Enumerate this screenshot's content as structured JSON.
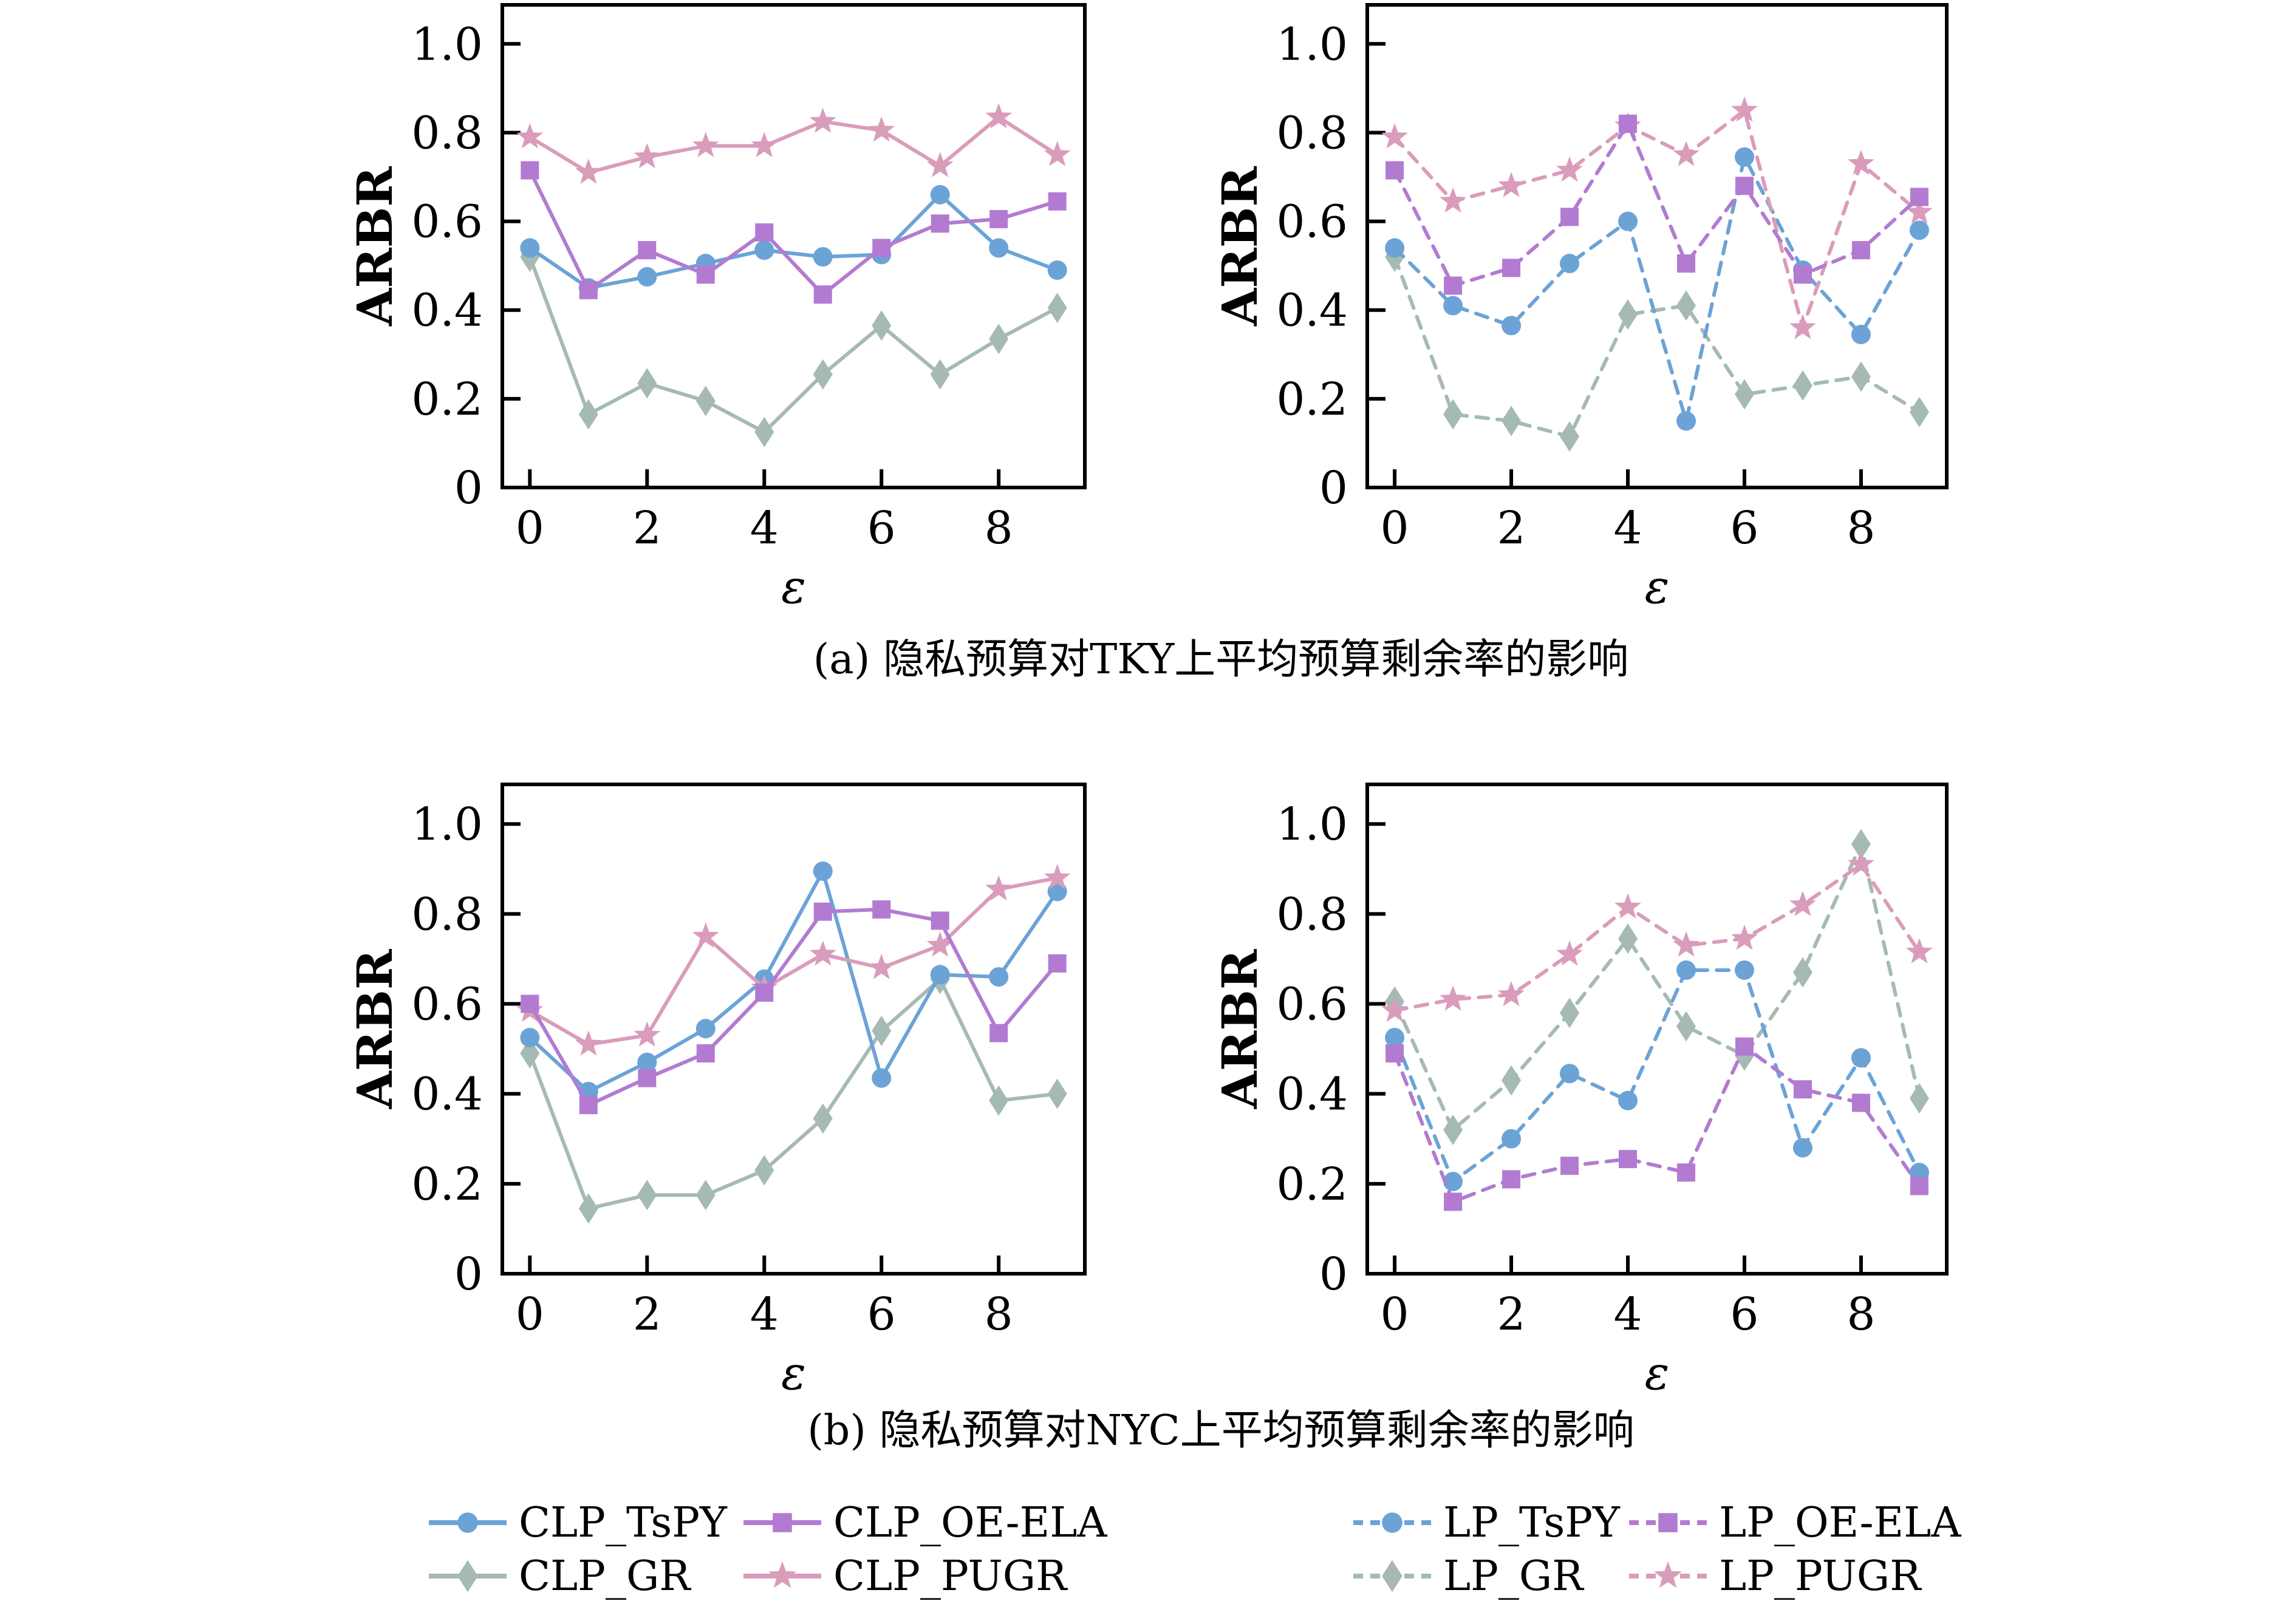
{
  "figure": {
    "background": "#ffffff",
    "captions": {
      "a": "(a) 隐私预算对TKY上平均预算剩余率的影响",
      "b": "(b) 隐私预算对NYC上平均预算剩余率的影响"
    }
  },
  "colors": {
    "TsPY": "#6ba3d6",
    "OE_ELA": "#b27bd1",
    "GR": "#a5bab2",
    "PUGR": "#da9cbb",
    "axis": "#000000"
  },
  "chart_data": [
    {
      "id": "tky-clp",
      "type": "line",
      "xlabel": "ε",
      "ylabel": "ARBR",
      "x": [
        0,
        1,
        2,
        3,
        4,
        5,
        6,
        7,
        8,
        9
      ],
      "xticks": [
        0,
        2,
        4,
        6,
        8
      ],
      "yticks": [
        0,
        0.2,
        0.4,
        0.6,
        0.8,
        1.0
      ],
      "ytick_labels": [
        "0",
        "0.2",
        "0.4",
        "0.6",
        "0.8",
        "1.0"
      ],
      "xlim": [
        -0.47,
        9.47
      ],
      "ylim": [
        0,
        1.088
      ],
      "series": [
        {
          "name": "CLP_TsPY",
          "color": "#6ba3d6",
          "marker": "circle",
          "dash": false,
          "values": [
            0.54,
            0.45,
            0.475,
            0.505,
            0.535,
            0.52,
            0.525,
            0.66,
            0.54,
            0.49
          ]
        },
        {
          "name": "CLP_OE-ELA",
          "color": "#b27bd1",
          "marker": "square",
          "dash": false,
          "values": [
            0.715,
            0.445,
            0.535,
            0.48,
            0.575,
            0.435,
            0.54,
            0.595,
            0.605,
            0.645
          ]
        },
        {
          "name": "CLP_GR",
          "color": "#a5bab2",
          "marker": "diamond",
          "dash": false,
          "values": [
            0.52,
            0.165,
            0.235,
            0.195,
            0.125,
            0.255,
            0.365,
            0.255,
            0.335,
            0.405
          ]
        },
        {
          "name": "CLP_PUGR",
          "color": "#da9cbb",
          "marker": "star",
          "dash": false,
          "values": [
            0.79,
            0.71,
            0.745,
            0.77,
            0.77,
            0.825,
            0.805,
            0.725,
            0.835,
            0.75
          ]
        }
      ]
    },
    {
      "id": "tky-lp",
      "type": "line",
      "xlabel": "ε",
      "ylabel": "ARBR",
      "x": [
        0,
        1,
        2,
        3,
        4,
        5,
        6,
        7,
        8,
        9
      ],
      "xticks": [
        0,
        2,
        4,
        6,
        8
      ],
      "yticks": [
        0,
        0.2,
        0.4,
        0.6,
        0.8,
        1.0
      ],
      "ytick_labels": [
        "0",
        "0.2",
        "0.4",
        "0.6",
        "0.8",
        "1.0"
      ],
      "xlim": [
        -0.47,
        9.47
      ],
      "ylim": [
        0,
        1.088
      ],
      "series": [
        {
          "name": "LP_TsPY",
          "color": "#6ba3d6",
          "marker": "circle",
          "dash": true,
          "values": [
            0.54,
            0.41,
            0.365,
            0.505,
            0.6,
            0.15,
            0.745,
            0.49,
            0.345,
            0.58
          ]
        },
        {
          "name": "LP_OE-ELA",
          "color": "#b27bd1",
          "marker": "square",
          "dash": true,
          "values": [
            0.715,
            0.455,
            0.495,
            0.61,
            0.82,
            0.505,
            0.68,
            0.48,
            0.535,
            0.655
          ]
        },
        {
          "name": "LP_GR",
          "color": "#a5bab2",
          "marker": "diamond",
          "dash": true,
          "values": [
            0.52,
            0.165,
            0.15,
            0.115,
            0.39,
            0.41,
            0.21,
            0.23,
            0.25,
            0.17
          ]
        },
        {
          "name": "LP_PUGR",
          "color": "#da9cbb",
          "marker": "star",
          "dash": true,
          "values": [
            0.79,
            0.645,
            0.68,
            0.715,
            0.815,
            0.75,
            0.85,
            0.36,
            0.73,
            0.62
          ]
        }
      ]
    },
    {
      "id": "nyc-clp",
      "type": "line",
      "xlabel": "ε",
      "ylabel": "ARBR",
      "x": [
        0,
        1,
        2,
        3,
        4,
        5,
        6,
        7,
        8,
        9
      ],
      "xticks": [
        0,
        2,
        4,
        6,
        8
      ],
      "yticks": [
        0,
        0.2,
        0.4,
        0.6,
        0.8,
        1.0
      ],
      "ytick_labels": [
        "0",
        "0.2",
        "0.4",
        "0.6",
        "0.8",
        "1.0"
      ],
      "xlim": [
        -0.47,
        9.47
      ],
      "ylim": [
        0,
        1.088
      ],
      "series": [
        {
          "name": "CLP_TsPY",
          "color": "#6ba3d6",
          "marker": "circle",
          "dash": false,
          "values": [
            0.525,
            0.405,
            0.47,
            0.545,
            0.655,
            0.895,
            0.435,
            0.665,
            0.66,
            0.85
          ]
        },
        {
          "name": "CLP_OE-ELA",
          "color": "#b27bd1",
          "marker": "square",
          "dash": false,
          "values": [
            0.6,
            0.375,
            0.435,
            0.49,
            0.625,
            0.805,
            0.81,
            0.785,
            0.535,
            0.69
          ]
        },
        {
          "name": "CLP_GR",
          "color": "#a5bab2",
          "marker": "diamond",
          "dash": false,
          "values": [
            0.49,
            0.145,
            0.175,
            0.175,
            0.23,
            0.345,
            0.54,
            0.655,
            0.385,
            0.4
          ]
        },
        {
          "name": "CLP_PUGR",
          "color": "#da9cbb",
          "marker": "star",
          "dash": false,
          "values": [
            0.585,
            0.51,
            0.53,
            0.75,
            0.635,
            0.71,
            0.68,
            0.73,
            0.855,
            0.88
          ]
        }
      ]
    },
    {
      "id": "nyc-lp",
      "type": "line",
      "xlabel": "ε",
      "ylabel": "ARBR",
      "x": [
        0,
        1,
        2,
        3,
        4,
        5,
        6,
        7,
        8,
        9
      ],
      "xticks": [
        0,
        2,
        4,
        6,
        8
      ],
      "yticks": [
        0,
        0.2,
        0.4,
        0.6,
        0.8,
        1.0
      ],
      "ytick_labels": [
        "0",
        "0.2",
        "0.4",
        "0.6",
        "0.8",
        "1.0"
      ],
      "xlim": [
        -0.47,
        9.47
      ],
      "ylim": [
        0,
        1.088
      ],
      "series": [
        {
          "name": "LP_TsPY",
          "color": "#6ba3d6",
          "marker": "circle",
          "dash": true,
          "values": [
            0.525,
            0.205,
            0.3,
            0.445,
            0.385,
            0.675,
            0.675,
            0.28,
            0.48,
            0.225
          ]
        },
        {
          "name": "LP_OE-ELA",
          "color": "#b27bd1",
          "marker": "square",
          "dash": true,
          "values": [
            0.49,
            0.16,
            0.21,
            0.24,
            0.255,
            0.225,
            0.505,
            0.41,
            0.38,
            0.195
          ]
        },
        {
          "name": "LP_GR",
          "color": "#a5bab2",
          "marker": "diamond",
          "dash": true,
          "values": [
            0.605,
            0.32,
            0.43,
            0.58,
            0.745,
            0.55,
            0.485,
            0.67,
            0.955,
            0.39
          ]
        },
        {
          "name": "LP_PUGR",
          "color": "#da9cbb",
          "marker": "star",
          "dash": true,
          "values": [
            0.585,
            0.61,
            0.62,
            0.71,
            0.815,
            0.73,
            0.745,
            0.82,
            0.91,
            0.715
          ]
        }
      ]
    }
  ],
  "legend": {
    "groups": [
      {
        "line_style": "solid",
        "items": [
          {
            "label": "CLP_TsPY",
            "color": "#6ba3d6",
            "marker": "circle"
          },
          {
            "label": "CLP_OE-ELA",
            "color": "#b27bd1",
            "marker": "square"
          },
          {
            "label": "CLP_GR",
            "color": "#a5bab2",
            "marker": "diamond"
          },
          {
            "label": "CLP_PUGR",
            "color": "#da9cbb",
            "marker": "star"
          }
        ]
      },
      {
        "line_style": "dashed",
        "items": [
          {
            "label": "LP_TsPY",
            "color": "#6ba3d6",
            "marker": "circle"
          },
          {
            "label": "LP_OE-ELA",
            "color": "#b27bd1",
            "marker": "square"
          },
          {
            "label": "LP_GR",
            "color": "#a5bab2",
            "marker": "diamond"
          },
          {
            "label": "LP_PUGR",
            "color": "#da9cbb",
            "marker": "star"
          }
        ]
      }
    ]
  }
}
